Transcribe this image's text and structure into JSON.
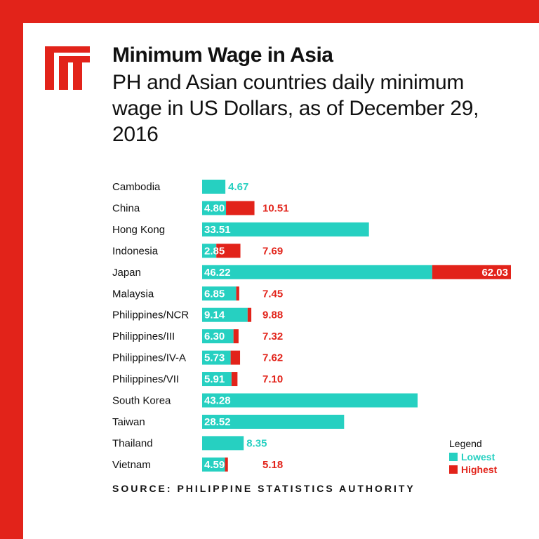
{
  "colors": {
    "background": "#e2231a",
    "lowest": "#26d0c1",
    "highest": "#e2231a"
  },
  "logo": {
    "name": "ft-logo-icon"
  },
  "header": {
    "title": "Minimum Wage in Asia",
    "subtitle": "PH and Asian countries daily minimum wage in US Dollars, as of December 29, 2016"
  },
  "legend": {
    "title": "Legend",
    "lowest_label": "Lowest",
    "highest_label": "Highest"
  },
  "source": "SOURCE: PHILIPPINE STATISTICS AUTHORITY",
  "chart_data": {
    "type": "bar",
    "orientation": "horizontal",
    "title": "Minimum Wage in Asia",
    "categories": [
      "Cambodia",
      "China",
      "Hong Kong",
      "Indonesia",
      "Japan",
      "Malaysia",
      "Philippines/NCR",
      "Philippines/III",
      "Philippines/IV-A",
      "Philippines/VII",
      "South Korea",
      "Taiwan",
      "Thailand",
      "Vietnam"
    ],
    "series": [
      {
        "name": "Lowest",
        "values": [
          4.67,
          4.8,
          33.51,
          2.85,
          46.22,
          6.85,
          9.14,
          6.3,
          5.73,
          5.91,
          43.28,
          28.52,
          8.35,
          4.59
        ]
      },
      {
        "name": "Highest",
        "values": [
          null,
          10.51,
          null,
          7.69,
          62.03,
          7.45,
          9.88,
          7.32,
          7.62,
          7.1,
          null,
          null,
          null,
          5.18
        ]
      }
    ],
    "value_labels": {
      "lowest": [
        "4.67",
        "4.80",
        "33.51",
        "2.85",
        "46.22",
        "6.85",
        "9.14",
        "6.30",
        "5.73",
        "5.91",
        "43.28",
        "28.52",
        "8.35",
        "4.59"
      ],
      "highest": [
        null,
        "10.51",
        null,
        "7.69",
        "62.03",
        "7.45",
        "9.88",
        "7.32",
        "7.62",
        "7.10",
        null,
        null,
        null,
        "5.18"
      ]
    },
    "xlim": [
      0,
      62.03
    ],
    "grid": false,
    "legend_position": "bottom-right"
  }
}
